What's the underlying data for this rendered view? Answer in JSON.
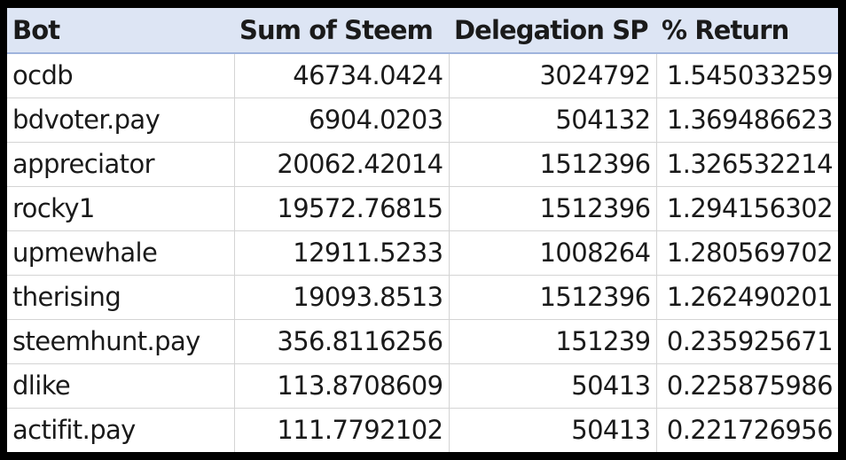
{
  "table": {
    "headers": [
      "Bot",
      "Sum of Steem",
      "Delegation SP",
      "% Return"
    ],
    "rows": [
      [
        "ocdb",
        "46734.0424",
        "3024792",
        "1.545033259"
      ],
      [
        "bdvoter.pay",
        "6904.0203",
        "504132",
        "1.369486623"
      ],
      [
        "appreciator",
        "20062.42014",
        "1512396",
        "1.326532214"
      ],
      [
        "rocky1",
        "19572.76815",
        "1512396",
        "1.294156302"
      ],
      [
        "upmewhale",
        "12911.5233",
        "1008264",
        "1.280569702"
      ],
      [
        "therising",
        "19093.8513",
        "1512396",
        "1.262490201"
      ],
      [
        "steemhunt.pay",
        "356.8116256",
        "151239",
        "0.235925671"
      ],
      [
        "dlike",
        "113.8708609",
        "50413",
        "0.225875986"
      ],
      [
        "actifit.pay",
        "111.7792102",
        "50413",
        "0.221726956"
      ]
    ]
  },
  "colors": {
    "header_background": "#dde5f4",
    "frame_background": "#000000"
  }
}
